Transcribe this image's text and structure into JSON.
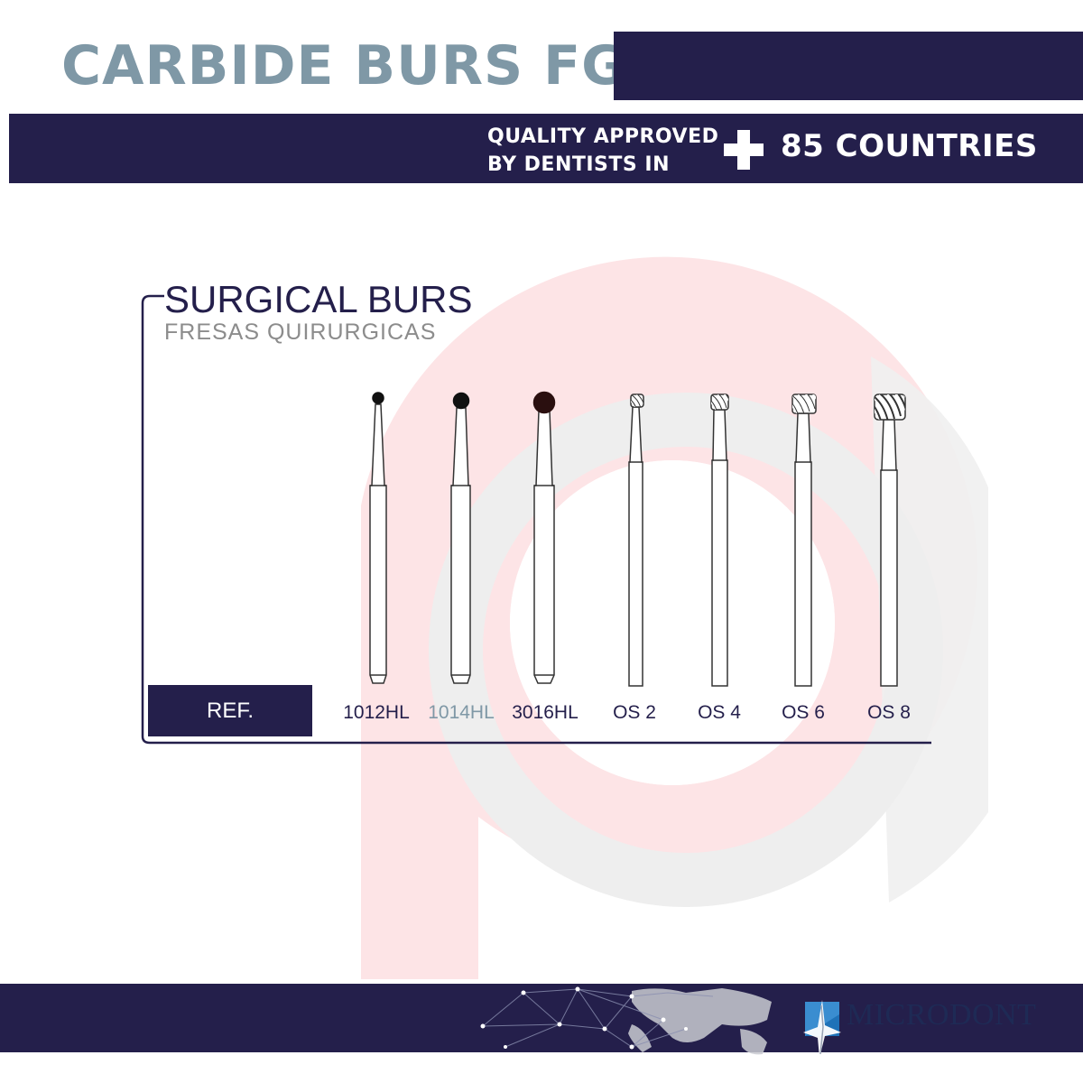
{
  "header": {
    "title": "CARBIDE BURS FG",
    "tagline_line1": "QUALITY APPROVED",
    "tagline_line2": "BY DENTISTS IN",
    "countries": "85 COUNTRIES"
  },
  "section": {
    "title": "SURGICAL BURS",
    "subtitle": "FRESAS QUIRURGICAS",
    "ref_label": "REF."
  },
  "burs": [
    {
      "ref": "1012HL",
      "head": "round-dark"
    },
    {
      "ref": "1014HL",
      "head": "round-dark"
    },
    {
      "ref": "3016HL",
      "head": "round-dark"
    },
    {
      "ref": "OS 2",
      "head": "cylinder-fluted"
    },
    {
      "ref": "OS 4",
      "head": "cylinder-fluted"
    },
    {
      "ref": "OS 6",
      "head": "cylinder-fluted"
    },
    {
      "ref": "OS 8",
      "head": "cylinder-fluted"
    }
  ],
  "footer": {
    "brand": "MICRODONT",
    "logo_icon": "microdont-star-icon"
  },
  "colors": {
    "navy": "#241f4b",
    "title_gray_blue": "#7f98a6",
    "highlight_ref": "#7f98a6"
  }
}
